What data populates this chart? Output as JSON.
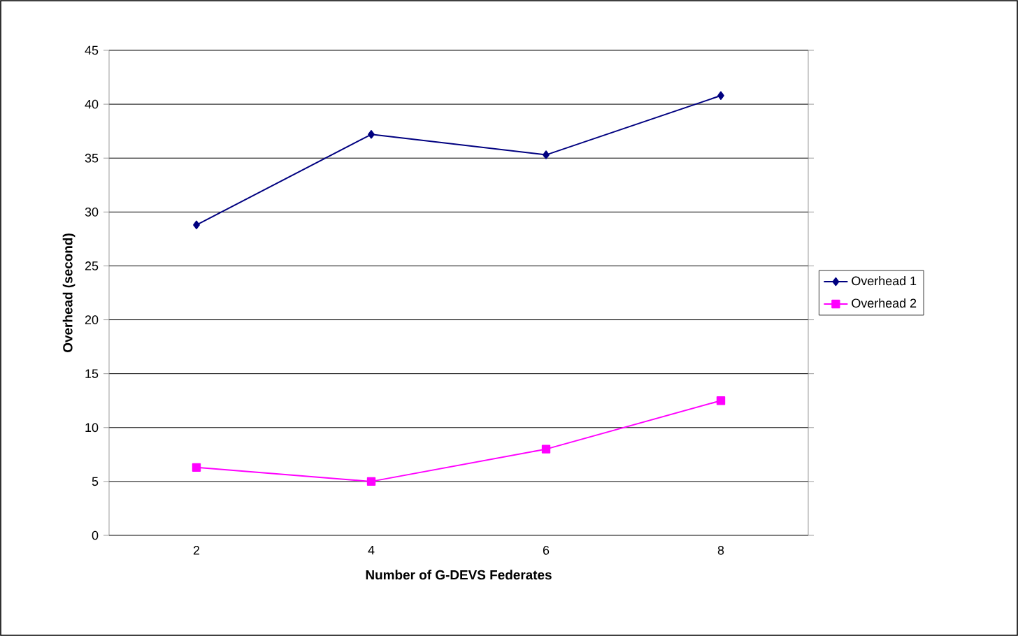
{
  "chart_data": {
    "type": "line",
    "xlabel": "Number of G-DEVS Federates",
    "ylabel": "Overhead (second)",
    "categories": [
      "2",
      "4",
      "6",
      "8"
    ],
    "series": [
      {
        "name": "Overhead 1",
        "color": "#000080",
        "marker": "diamond",
        "values": [
          28.8,
          37.2,
          35.3,
          40.8
        ]
      },
      {
        "name": "Overhead 2",
        "color": "#ff00ff",
        "marker": "square",
        "values": [
          6.3,
          5.0,
          8.0,
          12.5
        ]
      }
    ],
    "ylim": [
      0,
      45
    ],
    "yticks": [
      0,
      5,
      10,
      15,
      20,
      25,
      30,
      35,
      40,
      45
    ],
    "grid": "y",
    "legend": "right",
    "line_style": "solid"
  }
}
